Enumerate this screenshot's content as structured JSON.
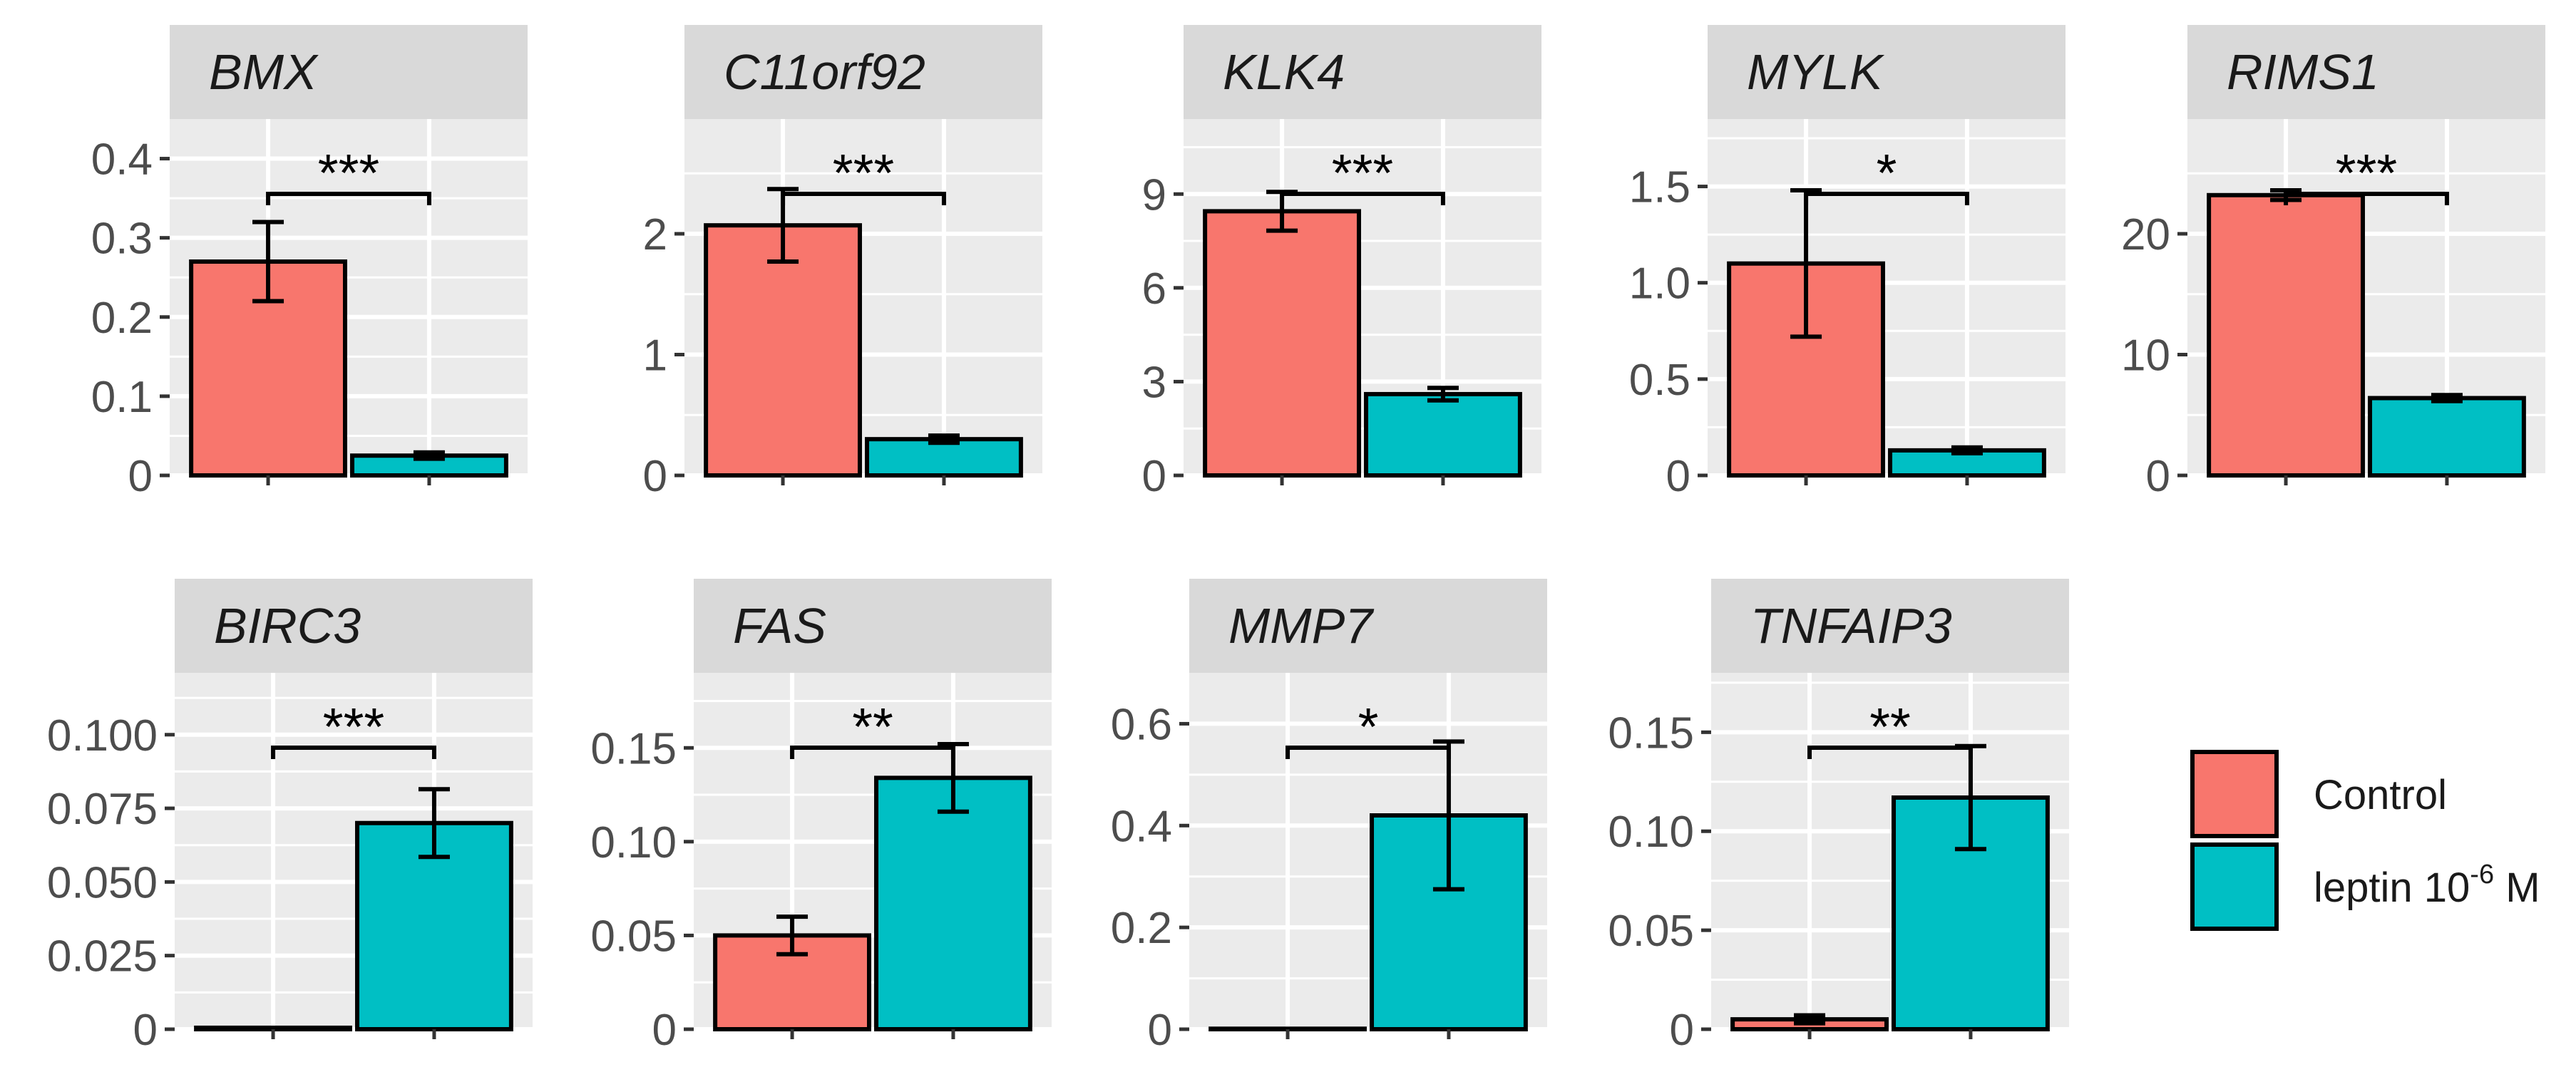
{
  "chart_data": [
    {
      "type": "bar",
      "title": "BMX",
      "categories": [
        "Control",
        "leptin 10-6 M"
      ],
      "values": [
        0.27,
        0.025
      ],
      "errors": [
        0.05,
        0.004
      ],
      "ylim": [
        0,
        0.45
      ],
      "yticks": [
        0,
        0.1,
        0.2,
        0.3,
        0.4
      ],
      "tick_labels": [
        "0",
        "0.1",
        "0.2",
        "0.3",
        "0.4"
      ],
      "significance": "***"
    },
    {
      "type": "bar",
      "title": "C11orf92",
      "categories": [
        "Control",
        "leptin 10-6 M"
      ],
      "values": [
        2.07,
        0.3
      ],
      "errors": [
        0.3,
        0.03
      ],
      "ylim": [
        0,
        2.95
      ],
      "yticks": [
        0,
        1,
        2
      ],
      "tick_labels": [
        "0",
        "1",
        "2"
      ],
      "significance": "***"
    },
    {
      "type": "bar",
      "title": "KLK4",
      "categories": [
        "Control",
        "leptin 10-6 M"
      ],
      "values": [
        8.45,
        2.6
      ],
      "errors": [
        0.62,
        0.2
      ],
      "ylim": [
        0,
        11.4
      ],
      "yticks": [
        0,
        3,
        6,
        9
      ],
      "tick_labels": [
        "0",
        "3",
        "6",
        "9"
      ],
      "significance": "***"
    },
    {
      "type": "bar",
      "title": "MYLK",
      "categories": [
        "Control",
        "leptin 10-6 M"
      ],
      "values": [
        1.1,
        0.13
      ],
      "errors": [
        0.38,
        0.015
      ],
      "ylim": [
        0,
        1.85
      ],
      "yticks": [
        0,
        0.5,
        1.0,
        1.5
      ],
      "tick_labels": [
        "0",
        "0.5",
        "1.0",
        "1.5"
      ],
      "significance": "*"
    },
    {
      "type": "bar",
      "title": "RIMS1",
      "categories": [
        "Control",
        "leptin 10-6 M"
      ],
      "values": [
        23.2,
        6.4
      ],
      "errors": [
        0.4,
        0.25
      ],
      "ylim": [
        0,
        29.5
      ],
      "yticks": [
        0,
        10,
        20
      ],
      "tick_labels": [
        "0",
        "10",
        "20"
      ],
      "significance": "***"
    },
    {
      "type": "bar",
      "title": "BIRC3",
      "categories": [
        "Control",
        "leptin 10-6 M"
      ],
      "values": [
        0.0005,
        0.07
      ],
      "errors": [
        0,
        0.0115
      ],
      "ylim": [
        0,
        0.121
      ],
      "yticks": [
        0,
        0.025,
        0.05,
        0.075,
        0.1
      ],
      "tick_labels": [
        "0",
        "0.025",
        "0.050",
        "0.075",
        "0.100"
      ],
      "significance": "***"
    },
    {
      "type": "bar",
      "title": "FAS",
      "categories": [
        "Control",
        "leptin 10-6 M"
      ],
      "values": [
        0.05,
        0.134
      ],
      "errors": [
        0.01,
        0.018
      ],
      "ylim": [
        0,
        0.19
      ],
      "yticks": [
        0,
        0.05,
        0.1,
        0.15
      ],
      "tick_labels": [
        "0",
        "0.05",
        "0.10",
        "0.15"
      ],
      "significance": "**"
    },
    {
      "type": "bar",
      "title": "MMP7",
      "categories": [
        "Control",
        "leptin 10-6 M"
      ],
      "values": [
        0.001,
        0.42
      ],
      "errors": [
        0,
        0.145
      ],
      "ylim": [
        0,
        0.7
      ],
      "yticks": [
        0,
        0.2,
        0.4,
        0.6
      ],
      "tick_labels": [
        "0",
        "0.2",
        "0.4",
        "0.6"
      ],
      "significance": "*"
    },
    {
      "type": "bar",
      "title": "TNFAIP3",
      "categories": [
        "Control",
        "leptin 10-6 M"
      ],
      "values": [
        0.005,
        0.117
      ],
      "errors": [
        0.002,
        0.026
      ],
      "ylim": [
        0,
        0.18
      ],
      "yticks": [
        0,
        0.05,
        0.1,
        0.15
      ],
      "tick_labels": [
        "0",
        "0.05",
        "0.10",
        "0.15"
      ],
      "significance": "**"
    }
  ],
  "legend": {
    "items": [
      {
        "label": "Control",
        "color": "#F8766D"
      },
      {
        "label": "leptin 10",
        "superscript": "-6",
        "suffix": " M",
        "color": "#00BFC4"
      }
    ],
    "position": "right"
  },
  "colors": {
    "control": "#F8766D",
    "leptin": "#00BFC4",
    "panel": "#EBEBEB",
    "strip": "#D9D9D9"
  }
}
